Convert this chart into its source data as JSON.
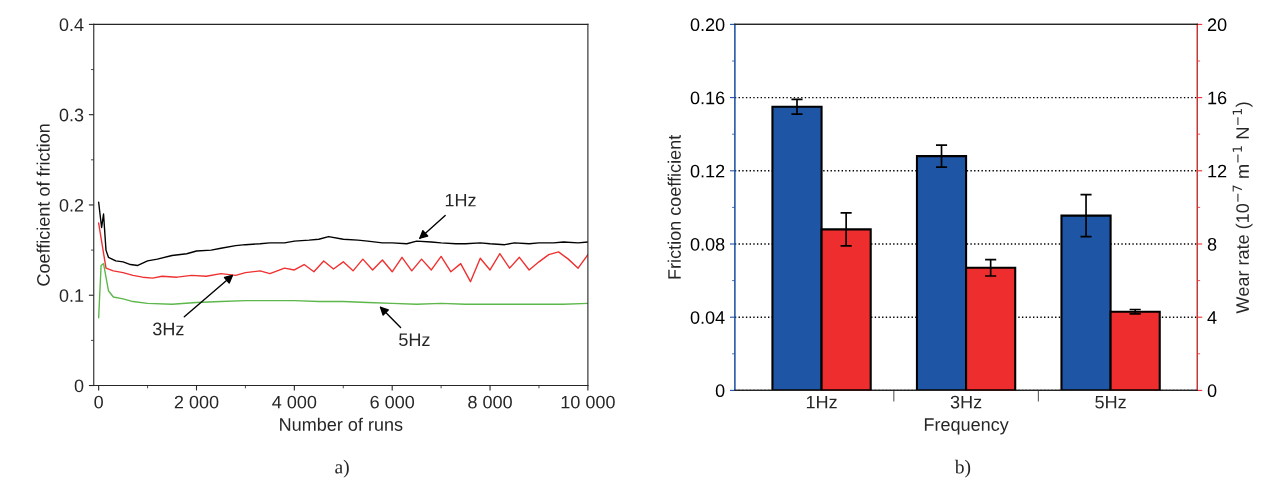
{
  "chart_data": [
    {
      "type": "line",
      "xlabel": "Number of runs",
      "ylabel": "Coefficient of friction",
      "xlim": [
        -100,
        10000
      ],
      "ylim": [
        0,
        0.4
      ],
      "xticks": [
        0,
        {
          "value": 2000,
          "label": "2 000"
        },
        {
          "value": 4000,
          "label": "4 000"
        },
        {
          "value": 6000,
          "label": "6 000"
        },
        {
          "value": 8000,
          "label": "8 000"
        },
        {
          "value": 10000,
          "label": "10 000"
        }
      ],
      "yticks": [
        0,
        0.1,
        0.2,
        0.3,
        0.4
      ],
      "grid": false,
      "legend": false,
      "line_style": "solid",
      "marker": "none",
      "series": [
        {
          "color": "#000000",
          "x": [
            0,
            60,
            100,
            150,
            200,
            350,
            500,
            650,
            800,
            1000,
            1200,
            1500,
            1800,
            2000,
            2300,
            2500,
            2800,
            3000,
            3300,
            3500,
            3800,
            4000,
            4300,
            4500,
            4700,
            5000,
            5300,
            5500,
            5800,
            6000,
            6300,
            6500,
            6800,
            7000,
            7300,
            7500,
            7800,
            8000,
            8300,
            8500,
            8800,
            9000,
            9300,
            9500,
            9800,
            10000
          ],
          "values": [
            0.203,
            0.175,
            0.19,
            0.15,
            0.142,
            0.138,
            0.137,
            0.134,
            0.133,
            0.138,
            0.14,
            0.144,
            0.146,
            0.149,
            0.15,
            0.152,
            0.155,
            0.156,
            0.157,
            0.158,
            0.158,
            0.16,
            0.161,
            0.162,
            0.165,
            0.162,
            0.161,
            0.16,
            0.158,
            0.158,
            0.157,
            0.16,
            0.159,
            0.158,
            0.157,
            0.157,
            0.158,
            0.157,
            0.156,
            0.158,
            0.157,
            0.158,
            0.158,
            0.159,
            0.158,
            0.159
          ]
        },
        {
          "color": "#f03030",
          "x": [
            0,
            60,
            150,
            300,
            500,
            700,
            900,
            1100,
            1300,
            1600,
            1900,
            2200,
            2500,
            2800,
            3000,
            3300,
            3500,
            3800,
            4000,
            4200,
            4400,
            4600,
            4800,
            5000,
            5200,
            5400,
            5600,
            5800,
            6000,
            6200,
            6400,
            6600,
            6800,
            7000,
            7200,
            7400,
            7600,
            7800,
            8000,
            8200,
            8400,
            8600,
            8800,
            9000,
            9200,
            9400,
            9600,
            9800,
            10000
          ],
          "values": [
            0.18,
            0.16,
            0.13,
            0.127,
            0.125,
            0.122,
            0.12,
            0.119,
            0.121,
            0.12,
            0.122,
            0.121,
            0.124,
            0.122,
            0.125,
            0.127,
            0.124,
            0.13,
            0.128,
            0.134,
            0.126,
            0.138,
            0.129,
            0.137,
            0.127,
            0.14,
            0.128,
            0.139,
            0.126,
            0.142,
            0.127,
            0.14,
            0.128,
            0.143,
            0.126,
            0.135,
            0.115,
            0.141,
            0.128,
            0.146,
            0.13,
            0.142,
            0.128,
            0.137,
            0.145,
            0.148,
            0.14,
            0.13,
            0.145
          ]
        },
        {
          "color": "#5cb84a",
          "x": [
            0,
            50,
            100,
            200,
            300,
            500,
            700,
            1000,
            1500,
            2000,
            2500,
            3000,
            3500,
            4000,
            4500,
            5000,
            5500,
            6000,
            6500,
            7000,
            7500,
            8000,
            8500,
            9000,
            9500,
            10000
          ],
          "values": [
            0.075,
            0.133,
            0.135,
            0.105,
            0.098,
            0.096,
            0.093,
            0.091,
            0.09,
            0.092,
            0.093,
            0.094,
            0.094,
            0.094,
            0.093,
            0.093,
            0.092,
            0.091,
            0.09,
            0.091,
            0.09,
            0.09,
            0.09,
            0.09,
            0.09,
            0.091
          ]
        }
      ],
      "annotations": [
        {
          "text": "1Hz",
          "x": 6500,
          "y": 0.16
        },
        {
          "text": "3Hz",
          "x": 2800,
          "y": 0.125
        },
        {
          "text": "5Hz",
          "x": 5700,
          "y": 0.09
        },
        "a)"
      ]
    },
    {
      "type": "bar",
      "xlabel": "Frequency",
      "ylabel": "Friction coefficient",
      "y2label": "Wear rate (10$^{−7}$ m$^{−1}$ N$^{−1}$)",
      "categories": [
        "1Hz",
        "3Hz",
        "5Hz"
      ],
      "ylim": [
        0,
        0.2
      ],
      "yticks": [
        0,
        0.04,
        0.08,
        0.12,
        0.16,
        {
          "value": 0.2,
          "label": "0.20"
        }
      ],
      "y2lim": [
        0,
        20
      ],
      "y2ticks": [
        0,
        4,
        8,
        12,
        16,
        20
      ],
      "grid": "y",
      "legend": false,
      "series": [
        {
          "color": "#1f55a5",
          "values": [
            0.155,
            0.128,
            0.0955
          ],
          "errors": [
            0.004,
            0.006,
            0.0115
          ]
        },
        {
          "color": "#ee2e2e",
          "axis": "y2",
          "values": [
            8.8,
            6.7,
            4.3
          ],
          "errors": [
            0.9,
            0.45,
            0.12
          ]
        }
      ],
      "annotations": [
        "b)"
      ]
    }
  ]
}
